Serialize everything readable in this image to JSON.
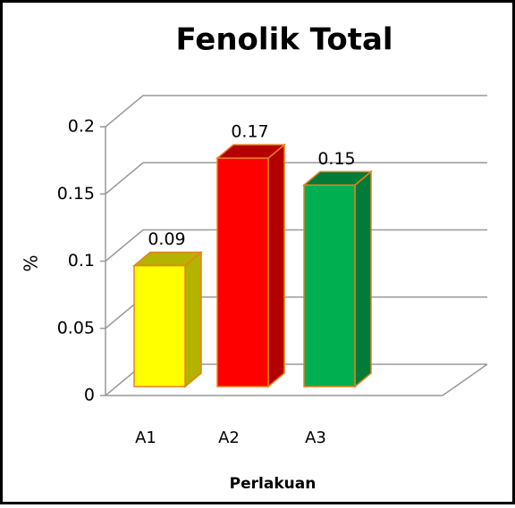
{
  "chart_data": {
    "type": "bar3d",
    "title": "Fenolik Total",
    "categories": [
      "A1",
      "A2",
      "A3"
    ],
    "values": [
      0.09,
      0.17,
      0.15
    ],
    "colors": [
      "#ffff00",
      "#ff0000",
      "#00b050"
    ],
    "edge_color": "#e8801e",
    "ylim": [
      0,
      0.2
    ],
    "yticks": [
      0,
      0.05,
      0.1,
      0.15,
      0.2
    ],
    "grid": true,
    "y_label": "%",
    "x_label": "Perlakuan"
  }
}
